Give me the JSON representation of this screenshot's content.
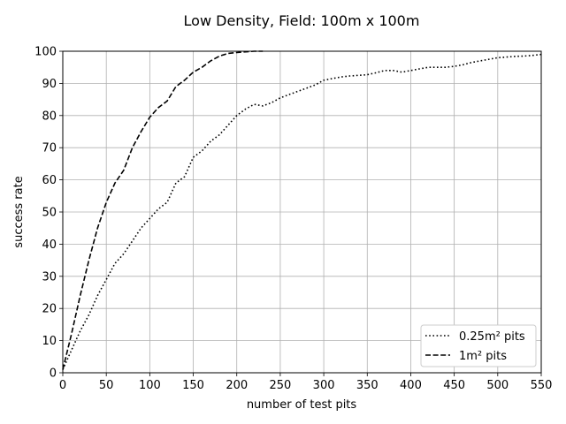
{
  "chart_data": {
    "type": "line",
    "title": "Low Density, Field: 100m x 100m",
    "xlabel": "number of test pits",
    "ylabel": "success rate",
    "xlim": [
      0,
      550
    ],
    "ylim": [
      0,
      100
    ],
    "xticks": [
      0,
      50,
      100,
      150,
      200,
      250,
      300,
      350,
      400,
      450,
      500,
      550
    ],
    "yticks": [
      0,
      10,
      20,
      30,
      40,
      50,
      60,
      70,
      80,
      90,
      100
    ],
    "grid": true,
    "legend_position": "bottom-right",
    "series": [
      {
        "name": "0.25m² pits",
        "line_style": "dotted",
        "color": "#000000",
        "x": [
          0,
          10,
          20,
          30,
          40,
          50,
          60,
          70,
          80,
          90,
          100,
          110,
          120,
          130,
          140,
          150,
          160,
          170,
          180,
          190,
          200,
          210,
          220,
          230,
          240,
          250,
          260,
          270,
          280,
          290,
          300,
          310,
          320,
          330,
          340,
          350,
          360,
          370,
          380,
          390,
          400,
          410,
          420,
          430,
          440,
          450,
          460,
          470,
          480,
          490,
          500,
          510,
          520,
          530,
          540,
          550
        ],
        "y": [
          1,
          7,
          13,
          18,
          24,
          29,
          34,
          37,
          41,
          45,
          48,
          51,
          53,
          59,
          61,
          67,
          69,
          72,
          74,
          77,
          80,
          82,
          83.5,
          83,
          84,
          85.5,
          86.5,
          87.5,
          88.5,
          89.5,
          91,
          91.5,
          92,
          92.3,
          92.5,
          92.7,
          93.3,
          94,
          94,
          93.5,
          94,
          94.5,
          95,
          95,
          95,
          95.3,
          95.8,
          96.5,
          97,
          97.5,
          98,
          98.2,
          98.4,
          98.5,
          98.7,
          99
        ]
      },
      {
        "name": "1m² pits",
        "line_style": "dashed",
        "color": "#000000",
        "x": [
          0,
          10,
          20,
          30,
          40,
          50,
          60,
          70,
          80,
          90,
          100,
          110,
          120,
          130,
          140,
          150,
          160,
          170,
          180,
          190,
          200,
          210,
          220,
          230
        ],
        "y": [
          1,
          12,
          24,
          35,
          45,
          53,
          59,
          63,
          70,
          75,
          79.5,
          82.5,
          84.5,
          89,
          91,
          93.5,
          95,
          97,
          98.5,
          99.3,
          99.6,
          99.8,
          100,
          100
        ]
      }
    ]
  }
}
